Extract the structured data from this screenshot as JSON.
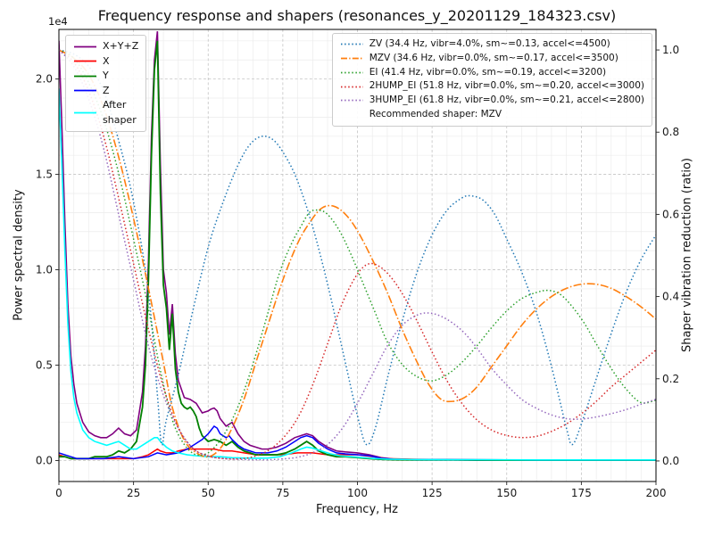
{
  "chart_data": {
    "type": "line",
    "title": "Frequency response and shapers (resonances_y_20201129_184323.csv)",
    "xlabel": "Frequency, Hz",
    "ylabel_left": "Power spectral density",
    "ylabel_right": "Shaper vibration reduction (ratio)",
    "offset_text": "1e4",
    "x_range": [
      0,
      200
    ],
    "x_ticks": [
      0,
      25,
      50,
      75,
      100,
      125,
      150,
      175,
      200
    ],
    "x_minor_step": 5,
    "y_left_range": [
      -0.11,
      2.26
    ],
    "y_left_ticks": [
      0.0,
      0.5,
      1.0,
      1.5,
      2.0
    ],
    "y_left_minor_step": 0.1,
    "y_left_scale": 10000,
    "y_right_range": [
      -0.05,
      1.05
    ],
    "y_right_ticks": [
      0.0,
      0.2,
      0.4,
      0.6,
      0.8,
      1.0
    ],
    "grid": {
      "major": true,
      "minor": true
    },
    "series": [
      {
        "name": "X+Y+Z",
        "axis": "left",
        "color": "#800080",
        "style": "solid",
        "width": 1.6,
        "smooth": false,
        "x": [
          0,
          1,
          2,
          3,
          4,
          5,
          6,
          8,
          10,
          12,
          14,
          16,
          18,
          20,
          22,
          24,
          26,
          28,
          29,
          30,
          31,
          32,
          33,
          34,
          35,
          36,
          37,
          38,
          39,
          40,
          42,
          44,
          46,
          48,
          50,
          51,
          52,
          53,
          54,
          56,
          58,
          60,
          62,
          64,
          66,
          68,
          70,
          73,
          76,
          79,
          81,
          83,
          85,
          87,
          90,
          93,
          96,
          100,
          104,
          108,
          112,
          120,
          130,
          140,
          160,
          180,
          200
        ],
        "y": [
          2.2,
          1.75,
          1.25,
          0.82,
          0.55,
          0.4,
          0.3,
          0.2,
          0.15,
          0.13,
          0.12,
          0.12,
          0.14,
          0.17,
          0.14,
          0.13,
          0.16,
          0.36,
          0.6,
          1.05,
          1.7,
          2.1,
          2.25,
          1.55,
          1.0,
          0.88,
          0.66,
          0.82,
          0.56,
          0.42,
          0.33,
          0.32,
          0.3,
          0.25,
          0.26,
          0.27,
          0.275,
          0.26,
          0.22,
          0.18,
          0.2,
          0.14,
          0.1,
          0.08,
          0.07,
          0.06,
          0.06,
          0.07,
          0.09,
          0.12,
          0.13,
          0.14,
          0.13,
          0.1,
          0.07,
          0.05,
          0.045,
          0.04,
          0.03,
          0.015,
          0.008,
          0.005,
          0.004,
          0.003,
          0.003,
          0.003,
          0.003
        ]
      },
      {
        "name": "X",
        "axis": "left",
        "color": "#ff0000",
        "style": "solid",
        "width": 1.5,
        "smooth": false,
        "x": [
          0,
          2,
          4,
          6,
          8,
          10,
          15,
          20,
          25,
          28,
          30,
          32,
          33,
          34,
          36,
          38,
          40,
          43,
          46,
          49,
          52,
          55,
          58,
          62,
          66,
          70,
          75,
          80,
          85,
          90,
          95,
          100,
          105,
          110,
          120,
          140,
          160,
          180,
          200
        ],
        "y": [
          0.03,
          0.02,
          0.01,
          0.01,
          0.01,
          0.01,
          0.01,
          0.01,
          0.01,
          0.02,
          0.03,
          0.05,
          0.06,
          0.05,
          0.04,
          0.04,
          0.05,
          0.06,
          0.06,
          0.06,
          0.06,
          0.05,
          0.05,
          0.04,
          0.03,
          0.03,
          0.03,
          0.04,
          0.04,
          0.03,
          0.03,
          0.03,
          0.02,
          0.01,
          0.006,
          0.004,
          0.003,
          0.003,
          0.003
        ]
      },
      {
        "name": "Y",
        "axis": "left",
        "color": "#008000",
        "style": "solid",
        "width": 1.8,
        "smooth": false,
        "x": [
          0,
          2,
          4,
          6,
          8,
          10,
          12,
          14,
          16,
          18,
          20,
          22,
          24,
          26,
          28,
          29,
          30,
          31,
          32,
          33,
          34,
          35,
          36,
          37,
          38,
          39,
          40,
          41,
          42,
          43,
          44,
          45,
          46,
          47,
          48,
          50,
          52,
          54,
          56,
          58,
          60,
          62,
          64,
          66,
          68,
          70,
          73,
          76,
          79,
          81,
          83,
          85,
          87,
          90,
          93,
          96,
          100,
          104,
          108,
          112,
          120,
          130,
          140,
          160,
          180,
          200
        ],
        "y": [
          0.02,
          0.02,
          0.01,
          0.01,
          0.01,
          0.01,
          0.02,
          0.02,
          0.02,
          0.03,
          0.05,
          0.04,
          0.06,
          0.1,
          0.28,
          0.5,
          0.95,
          1.6,
          2.05,
          2.2,
          1.4,
          0.92,
          0.8,
          0.58,
          0.77,
          0.48,
          0.36,
          0.3,
          0.28,
          0.27,
          0.28,
          0.26,
          0.23,
          0.17,
          0.13,
          0.1,
          0.11,
          0.1,
          0.08,
          0.1,
          0.07,
          0.05,
          0.04,
          0.03,
          0.03,
          0.03,
          0.03,
          0.04,
          0.06,
          0.08,
          0.1,
          0.08,
          0.05,
          0.03,
          0.02,
          0.02,
          0.015,
          0.01,
          0.006,
          0.004,
          0.003,
          0.003,
          0.002,
          0.002,
          0.002,
          0.002
        ]
      },
      {
        "name": "Z",
        "axis": "left",
        "color": "#0000ff",
        "style": "solid",
        "width": 1.5,
        "smooth": false,
        "x": [
          0,
          2,
          4,
          6,
          8,
          10,
          15,
          20,
          25,
          30,
          33,
          36,
          40,
          43,
          46,
          48,
          50,
          51,
          52,
          53,
          54,
          56,
          57,
          58,
          60,
          62,
          64,
          66,
          68,
          70,
          73,
          76,
          79,
          81,
          83,
          85,
          87,
          90,
          93,
          96,
          100,
          104,
          108,
          112,
          120,
          140,
          160,
          180,
          200
        ],
        "y": [
          0.04,
          0.03,
          0.02,
          0.01,
          0.01,
          0.01,
          0.01,
          0.02,
          0.01,
          0.02,
          0.04,
          0.03,
          0.04,
          0.06,
          0.09,
          0.11,
          0.14,
          0.16,
          0.18,
          0.17,
          0.14,
          0.12,
          0.13,
          0.11,
          0.08,
          0.06,
          0.05,
          0.04,
          0.04,
          0.04,
          0.05,
          0.07,
          0.1,
          0.12,
          0.13,
          0.12,
          0.09,
          0.06,
          0.04,
          0.035,
          0.03,
          0.025,
          0.012,
          0.007,
          0.005,
          0.004,
          0.003,
          0.003,
          0.003
        ]
      },
      {
        "name": "After shaper",
        "axis": "left",
        "color": "#00ffff",
        "style": "solid",
        "width": 1.6,
        "smooth": false,
        "x": [
          0,
          1,
          2,
          3,
          4,
          5,
          6,
          8,
          10,
          12,
          14,
          16,
          18,
          20,
          22,
          24,
          26,
          28,
          30,
          32,
          33,
          34,
          36,
          38,
          40,
          43,
          46,
          50,
          54,
          58,
          62,
          66,
          70,
          74,
          78,
          81,
          83,
          85,
          88,
          91,
          94,
          98,
          102,
          106,
          110,
          120,
          140,
          160,
          180,
          200
        ],
        "y": [
          1.95,
          1.55,
          1.1,
          0.72,
          0.47,
          0.33,
          0.25,
          0.16,
          0.12,
          0.1,
          0.09,
          0.08,
          0.09,
          0.1,
          0.08,
          0.06,
          0.06,
          0.08,
          0.1,
          0.12,
          0.12,
          0.1,
          0.07,
          0.05,
          0.04,
          0.03,
          0.025,
          0.02,
          0.02,
          0.015,
          0.013,
          0.012,
          0.013,
          0.02,
          0.04,
          0.06,
          0.07,
          0.065,
          0.05,
          0.035,
          0.025,
          0.02,
          0.015,
          0.01,
          0.007,
          0.005,
          0.004,
          0.003,
          0.003,
          0.003
        ]
      },
      {
        "name": "ZV",
        "axis": "right",
        "color": "#1f77b4",
        "style": "dotted",
        "width": 1.5,
        "smooth": true,
        "x": [
          0,
          5,
          10,
          15,
          20,
          25,
          30,
          33,
          34.4,
          36,
          40,
          45,
          50,
          55,
          60,
          64,
          68,
          72,
          76,
          80,
          85,
          90,
          95,
          100,
          103,
          106,
          110,
          115,
          120,
          125,
          130,
          135,
          138,
          142,
          146,
          150,
          155,
          160,
          165,
          170,
          172,
          175,
          180,
          185,
          190,
          195,
          200
        ],
        "y": [
          1.0,
          0.99,
          0.96,
          0.9,
          0.78,
          0.63,
          0.41,
          0.16,
          0.04,
          0.1,
          0.21,
          0.37,
          0.52,
          0.63,
          0.72,
          0.77,
          0.79,
          0.78,
          0.74,
          0.68,
          0.57,
          0.43,
          0.27,
          0.11,
          0.04,
          0.08,
          0.2,
          0.34,
          0.46,
          0.55,
          0.61,
          0.64,
          0.645,
          0.635,
          0.6,
          0.54,
          0.46,
          0.36,
          0.23,
          0.08,
          0.04,
          0.09,
          0.2,
          0.31,
          0.41,
          0.49,
          0.55
        ]
      },
      {
        "name": "MZV",
        "axis": "right",
        "color": "#ff7f0e",
        "style": "dashdot",
        "width": 1.6,
        "smooth": true,
        "x": [
          0,
          5,
          10,
          15,
          20,
          25,
          30,
          35,
          38,
          42,
          46,
          50,
          54,
          58,
          62,
          66,
          70,
          75,
          80,
          84,
          88,
          92,
          96,
          100,
          105,
          110,
          115,
          120,
          124,
          128,
          132,
          136,
          140,
          145,
          150,
          155,
          160,
          165,
          170,
          175,
          180,
          185,
          190,
          195,
          200
        ],
        "y": [
          1.0,
          0.98,
          0.94,
          0.86,
          0.74,
          0.59,
          0.42,
          0.24,
          0.13,
          0.05,
          0.02,
          0.01,
          0.03,
          0.08,
          0.15,
          0.24,
          0.33,
          0.44,
          0.53,
          0.58,
          0.615,
          0.62,
          0.6,
          0.56,
          0.49,
          0.41,
          0.32,
          0.24,
          0.185,
          0.15,
          0.145,
          0.155,
          0.18,
          0.23,
          0.28,
          0.33,
          0.37,
          0.4,
          0.42,
          0.43,
          0.43,
          0.42,
          0.4,
          0.375,
          0.345
        ]
      },
      {
        "name": "EI",
        "axis": "right",
        "color": "#2ca02c",
        "style": "dotted",
        "width": 1.5,
        "smooth": true,
        "x": [
          0,
          5,
          10,
          15,
          20,
          25,
          30,
          34,
          38,
          42,
          46,
          50,
          54,
          58,
          62,
          66,
          70,
          74,
          78,
          81,
          84,
          87,
          90,
          94,
          98,
          102,
          106,
          110,
          115,
          120,
          125,
          130,
          135,
          140,
          145,
          150,
          155,
          160,
          164,
          168,
          172,
          176,
          180,
          185,
          190,
          195,
          200
        ],
        "y": [
          1.0,
          0.98,
          0.92,
          0.83,
          0.7,
          0.54,
          0.37,
          0.22,
          0.1,
          0.04,
          0.015,
          0.02,
          0.05,
          0.1,
          0.17,
          0.26,
          0.36,
          0.46,
          0.53,
          0.57,
          0.605,
          0.61,
          0.6,
          0.56,
          0.5,
          0.43,
          0.36,
          0.29,
          0.235,
          0.205,
          0.195,
          0.21,
          0.24,
          0.28,
          0.325,
          0.365,
          0.395,
          0.41,
          0.415,
          0.405,
          0.375,
          0.335,
          0.285,
          0.225,
          0.175,
          0.142,
          0.148
        ]
      },
      {
        "name": "2HUMP_EI",
        "axis": "right",
        "color": "#d62728",
        "style": "dotted",
        "width": 1.5,
        "smooth": true,
        "x": [
          0,
          5,
          10,
          15,
          20,
          25,
          30,
          35,
          40,
          45,
          50,
          55,
          60,
          65,
          70,
          75,
          80,
          85,
          90,
          95,
          100,
          104,
          108,
          112,
          116,
          120,
          125,
          130,
          135,
          140,
          145,
          150,
          155,
          160,
          165,
          170,
          175,
          180,
          185,
          190,
          195,
          200
        ],
        "y": [
          1.0,
          0.97,
          0.9,
          0.79,
          0.64,
          0.48,
          0.32,
          0.18,
          0.08,
          0.03,
          0.012,
          0.006,
          0.005,
          0.01,
          0.025,
          0.055,
          0.105,
          0.185,
          0.285,
          0.385,
          0.455,
          0.48,
          0.47,
          0.44,
          0.395,
          0.34,
          0.265,
          0.195,
          0.14,
          0.1,
          0.075,
          0.062,
          0.057,
          0.06,
          0.072,
          0.09,
          0.115,
          0.145,
          0.18,
          0.21,
          0.24,
          0.27
        ]
      },
      {
        "name": "3HUMP_EI",
        "axis": "right",
        "color": "#9467bd",
        "style": "dotted",
        "width": 1.5,
        "smooth": true,
        "x": [
          0,
          5,
          10,
          15,
          20,
          25,
          30,
          35,
          40,
          45,
          50,
          55,
          60,
          65,
          70,
          75,
          80,
          85,
          90,
          95,
          100,
          105,
          110,
          115,
          120,
          124,
          128,
          132,
          136,
          140,
          145,
          150,
          155,
          160,
          165,
          170,
          175,
          180,
          185,
          190,
          195,
          200
        ],
        "y": [
          1.0,
          0.96,
          0.88,
          0.76,
          0.6,
          0.44,
          0.28,
          0.16,
          0.08,
          0.03,
          0.012,
          0.006,
          0.004,
          0.003,
          0.003,
          0.005,
          0.009,
          0.02,
          0.04,
          0.08,
          0.14,
          0.21,
          0.28,
          0.33,
          0.355,
          0.36,
          0.352,
          0.335,
          0.31,
          0.275,
          0.225,
          0.185,
          0.15,
          0.128,
          0.112,
          0.103,
          0.102,
          0.107,
          0.115,
          0.125,
          0.138,
          0.15
        ]
      }
    ]
  },
  "legend_psd": {
    "items": [
      {
        "label": "X+Y+Z",
        "color": "#800080",
        "style": "solid"
      },
      {
        "label": "X",
        "color": "#ff0000",
        "style": "solid"
      },
      {
        "label": "Y",
        "color": "#008000",
        "style": "solid"
      },
      {
        "label": "Z",
        "color": "#0000ff",
        "style": "solid"
      },
      {
        "label": "After\nshaper",
        "color": "#00ffff",
        "style": "solid"
      }
    ]
  },
  "legend_shapers": {
    "items": [
      {
        "label": "ZV (34.4 Hz, vibr=4.0%, sm~=0.13, accel<=4500)",
        "color": "#1f77b4",
        "style": "dotted"
      },
      {
        "label": "MZV (34.6 Hz, vibr=0.0%, sm~=0.17, accel<=3500)",
        "color": "#ff7f0e",
        "style": "dashdot"
      },
      {
        "label": "EI (41.4 Hz, vibr=0.0%, sm~=0.19, accel<=3200)",
        "color": "#2ca02c",
        "style": "dotted"
      },
      {
        "label": "2HUMP_EI (51.8 Hz, vibr=0.0%, sm~=0.20, accel<=3000)",
        "color": "#d62728",
        "style": "dotted"
      },
      {
        "label": "3HUMP_EI (61.8 Hz, vibr=0.0%, sm~=0.21, accel<=2800)",
        "color": "#9467bd",
        "style": "dotted"
      }
    ],
    "note": "Recommended shaper: MZV"
  }
}
